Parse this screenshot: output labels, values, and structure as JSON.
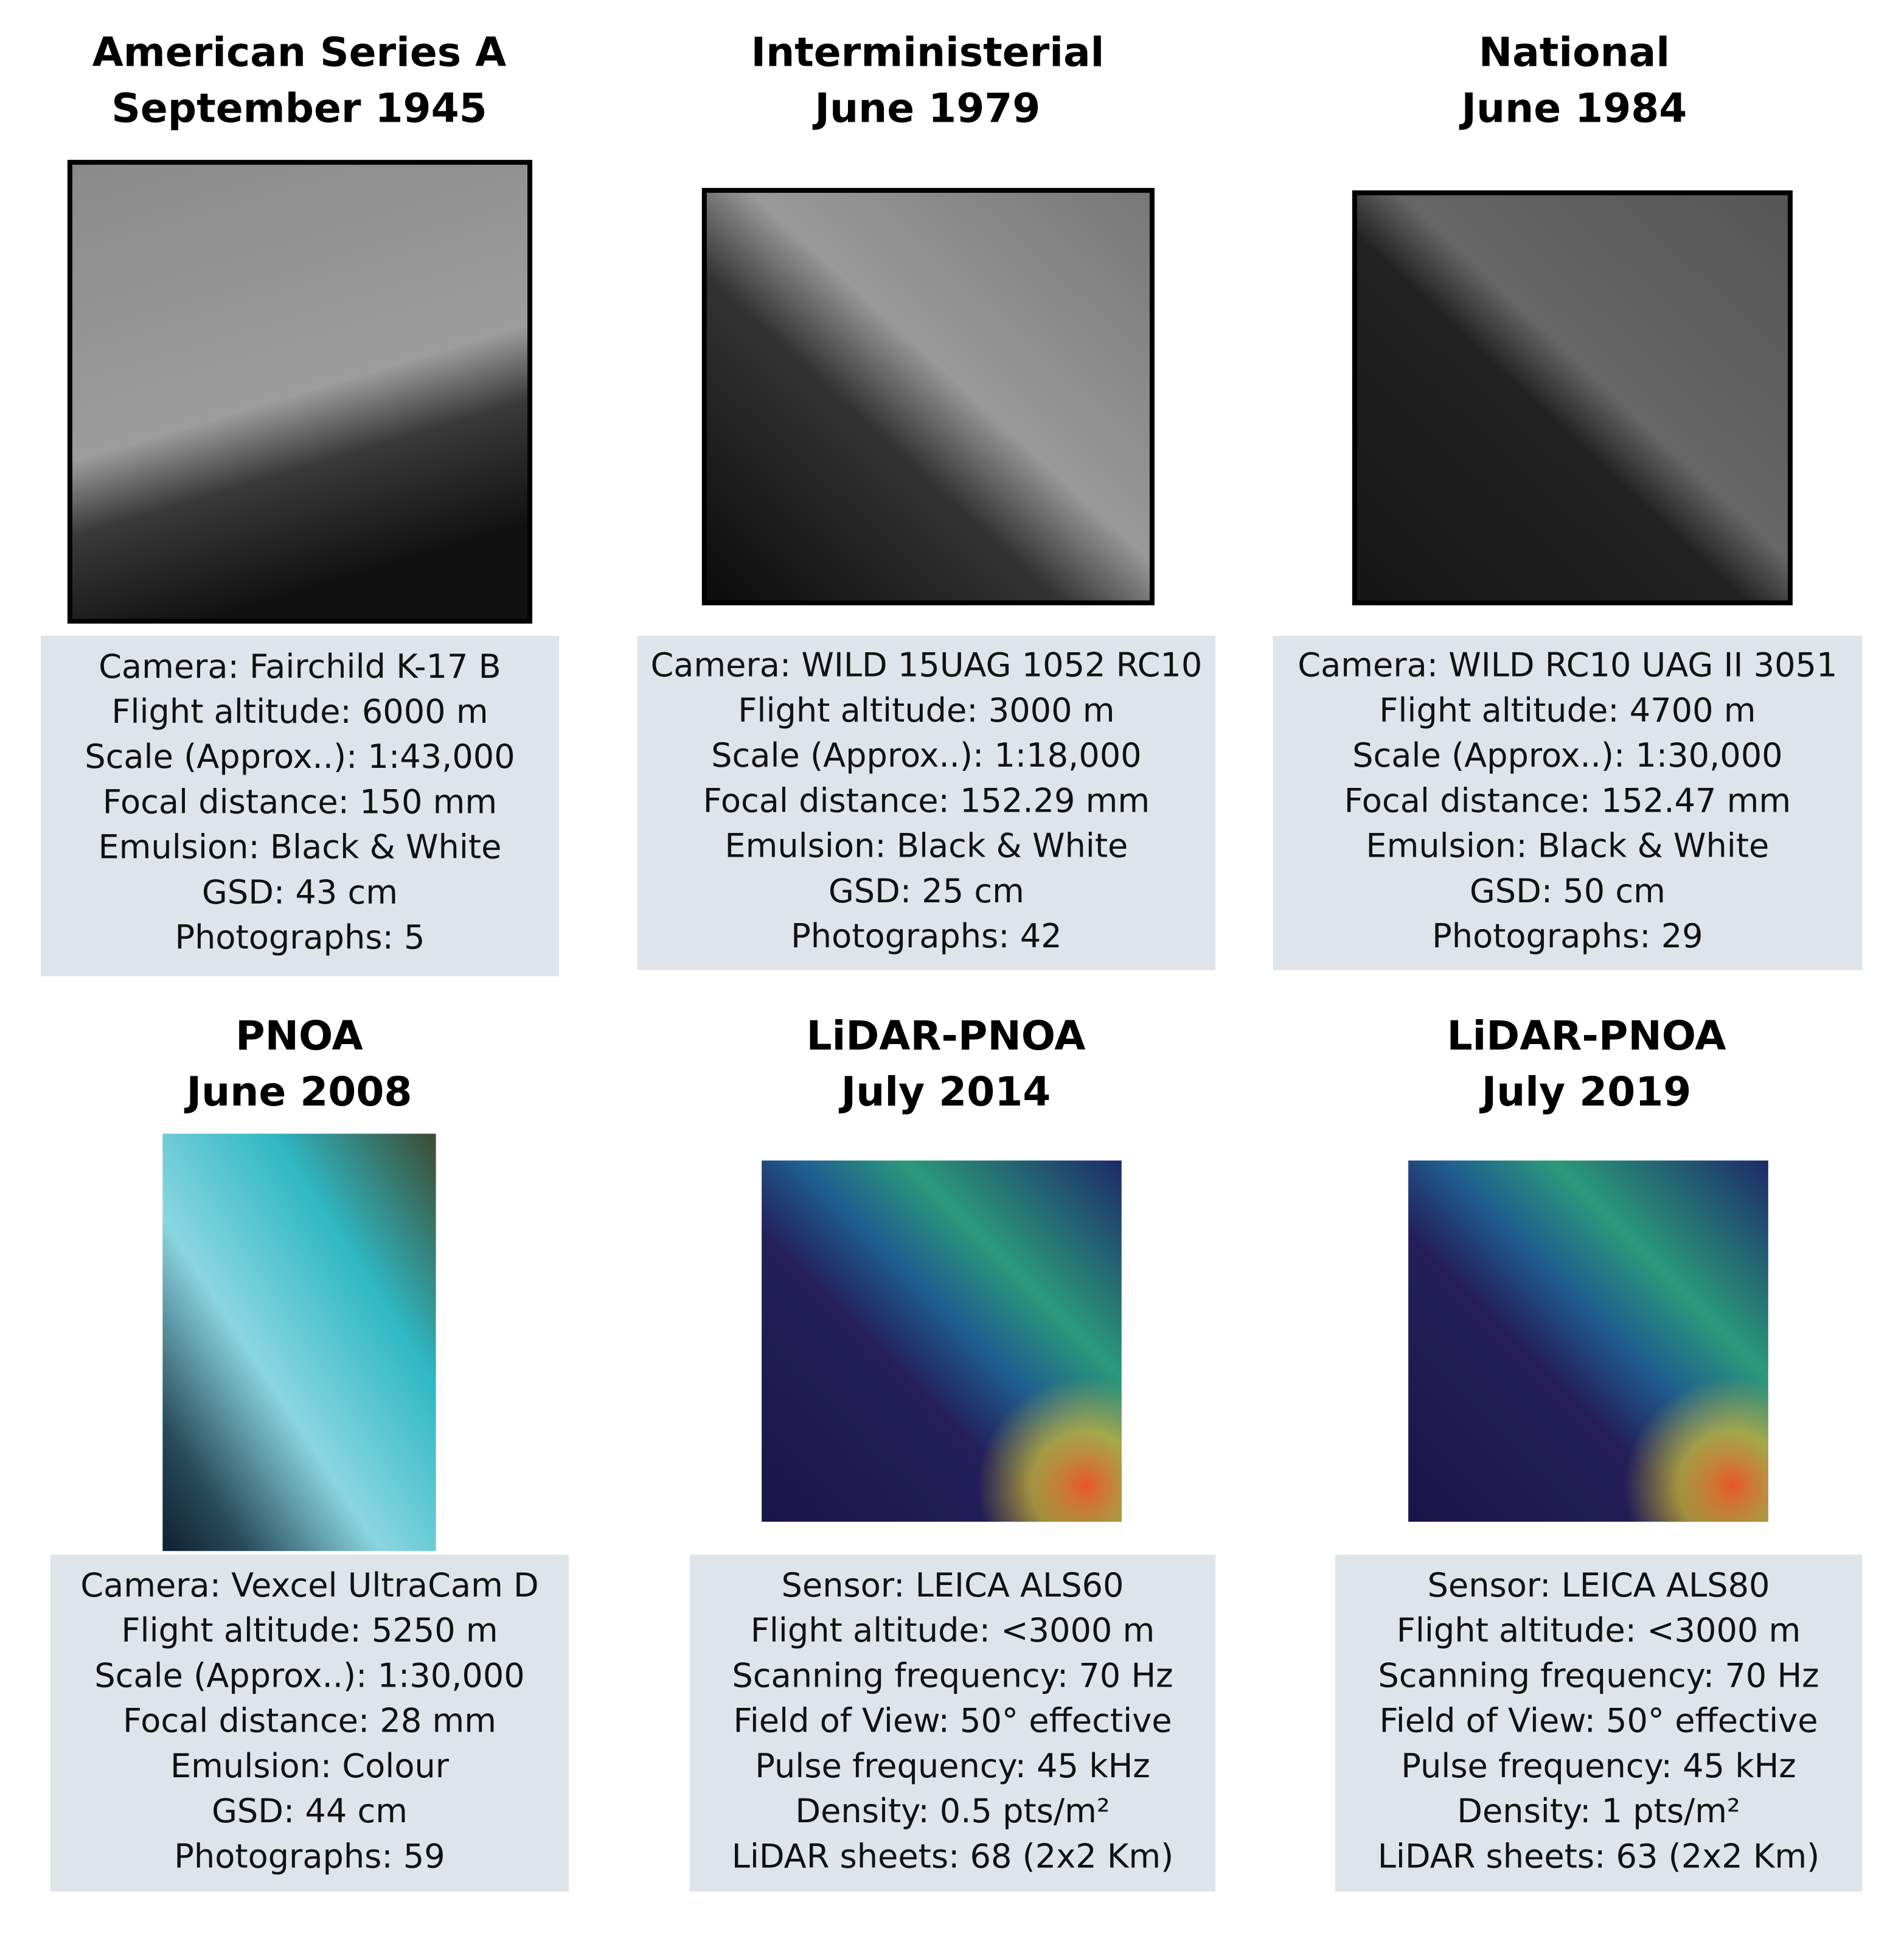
{
  "panels": [
    {
      "title": [
        "American Series A",
        "September 1945"
      ],
      "info": [
        "Camera: Fairchild K-17 B",
        "Flight altitude: 6000 m",
        "Scale (Approx..): 1:43,000",
        "Focal distance: 150 mm",
        "Emulsion: Black & White",
        "GSD: 43 cm",
        "Photographs: 5"
      ]
    },
    {
      "title": [
        "Interministerial",
        "June 1979"
      ],
      "info": [
        "Camera: WILD 15UAG 1052 RC10",
        "Flight altitude: 3000 m",
        "Scale (Approx..): 1:18,000",
        "Focal distance: 152.29 mm",
        "Emulsion: Black & White",
        "GSD: 25 cm",
        "Photographs: 42"
      ]
    },
    {
      "title": [
        "National",
        "June 1984"
      ],
      "info": [
        "Camera: WILD RC10 UAG II 3051",
        "Flight altitude: 4700 m",
        "Scale (Approx..): 1:30,000",
        "Focal distance: 152.47 mm",
        "Emulsion: Black & White",
        "GSD: 50 cm",
        "Photographs: 29"
      ]
    },
    {
      "title": [
        "PNOA",
        "June 2008"
      ],
      "info": [
        "Camera: Vexcel UltraCam D",
        "Flight altitude: 5250 m",
        "Scale (Approx..): 1:30,000",
        "Focal distance: 28 mm",
        "Emulsion: Colour",
        "GSD: 44 cm",
        "Photographs: 59"
      ]
    },
    {
      "title": [
        "LiDAR-PNOA",
        "July 2014"
      ],
      "info": [
        "Sensor: LEICA ALS60",
        "Flight altitude: <3000 m",
        "Scanning frequency: 70 Hz",
        "Field of View: 50° effective",
        "Pulse frequency: 45 kHz",
        "Density: 0.5 pts/m²",
        "LiDAR sheets: 68 (2x2 Km)"
      ]
    },
    {
      "title": [
        "LiDAR-PNOA",
        "July 2019"
      ],
      "info": [
        "Sensor: LEICA ALS80",
        "Flight altitude: <3000 m",
        "Scanning frequency: 70 Hz",
        "Field of View: 50° effective",
        "Pulse frequency: 45 kHz",
        "Density: 1 pts/m²",
        "LiDAR sheets: 63 (2x2 Km)"
      ]
    }
  ]
}
